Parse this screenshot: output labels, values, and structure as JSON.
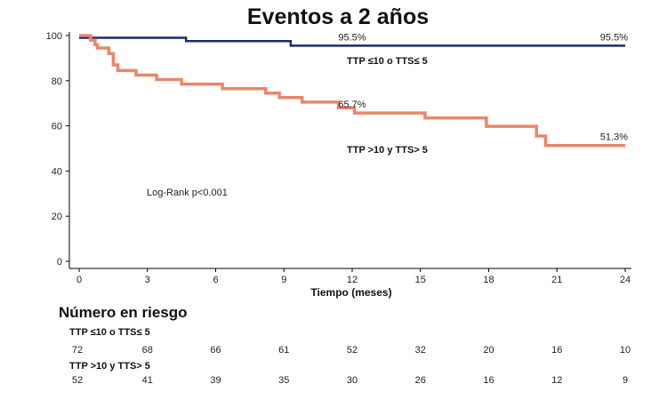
{
  "chart_data": {
    "type": "line",
    "title": "Eventos a 2 años",
    "xlabel": "Tiempo (meses)",
    "ylabel": "",
    "xlim": [
      0,
      24
    ],
    "ylim": [
      0,
      100
    ],
    "xticks": [
      0,
      3,
      6,
      9,
      12,
      15,
      18,
      21,
      24
    ],
    "yticks": [
      0,
      20,
      40,
      60,
      80,
      100
    ],
    "annotation": "Log-Rank p<0.001",
    "series": [
      {
        "name": "TTP ≤10 o TTS≤ 5",
        "color": "#1b2a6b",
        "points": [
          [
            0,
            99
          ],
          [
            4.7,
            99
          ],
          [
            4.7,
            97.5
          ],
          [
            9.3,
            97.5
          ],
          [
            9.3,
            95.5
          ],
          [
            24,
            95.5
          ]
        ],
        "labels": [
          {
            "text": "95.5%",
            "x": 12,
            "y": 95.5
          },
          {
            "text": "95.5%",
            "x": 24,
            "y": 95.5
          }
        ]
      },
      {
        "name": "TTP >10 y TTS> 5",
        "color": "#e8876a",
        "points": [
          [
            0,
            100
          ],
          [
            0.5,
            100
          ],
          [
            0.5,
            98
          ],
          [
            0.7,
            98
          ],
          [
            0.7,
            96
          ],
          [
            0.8,
            96
          ],
          [
            0.8,
            94.5
          ],
          [
            1.3,
            94.5
          ],
          [
            1.3,
            92
          ],
          [
            1.5,
            92
          ],
          [
            1.5,
            87
          ],
          [
            1.7,
            87
          ],
          [
            1.7,
            84.5
          ],
          [
            2.5,
            84.5
          ],
          [
            2.5,
            82.5
          ],
          [
            3.4,
            82.5
          ],
          [
            3.4,
            80.5
          ],
          [
            4.5,
            80.5
          ],
          [
            4.5,
            78.5
          ],
          [
            6.3,
            78.5
          ],
          [
            6.3,
            76.5
          ],
          [
            8.2,
            76.5
          ],
          [
            8.2,
            74.5
          ],
          [
            8.8,
            74.5
          ],
          [
            8.8,
            72.5
          ],
          [
            9.8,
            72.5
          ],
          [
            9.8,
            70.5
          ],
          [
            11.4,
            70.5
          ],
          [
            11.4,
            68
          ],
          [
            12.1,
            68
          ],
          [
            12.1,
            65.7
          ],
          [
            15.2,
            65.7
          ],
          [
            15.2,
            63.5
          ],
          [
            17.9,
            63.5
          ],
          [
            17.9,
            59.8
          ],
          [
            20.1,
            59.8
          ],
          [
            20.1,
            55.5
          ],
          [
            20.5,
            55.5
          ],
          [
            20.5,
            51.3
          ],
          [
            24,
            51.3
          ]
        ],
        "labels": [
          {
            "text": "65.7%",
            "x": 12,
            "y": 65.7
          },
          {
            "text": "51.3%",
            "x": 24,
            "y": 51.3
          }
        ]
      }
    ]
  },
  "risk_table": {
    "title": "Número en riesgo",
    "groups": [
      {
        "name": "TTP ≤10 o TTS≤ 5",
        "values": [
          72,
          68,
          66,
          61,
          52,
          32,
          20,
          16,
          10
        ]
      },
      {
        "name": "TTP >10 y TTS> 5",
        "values": [
          52,
          41,
          39,
          35,
          30,
          26,
          16,
          12,
          9
        ]
      }
    ]
  }
}
